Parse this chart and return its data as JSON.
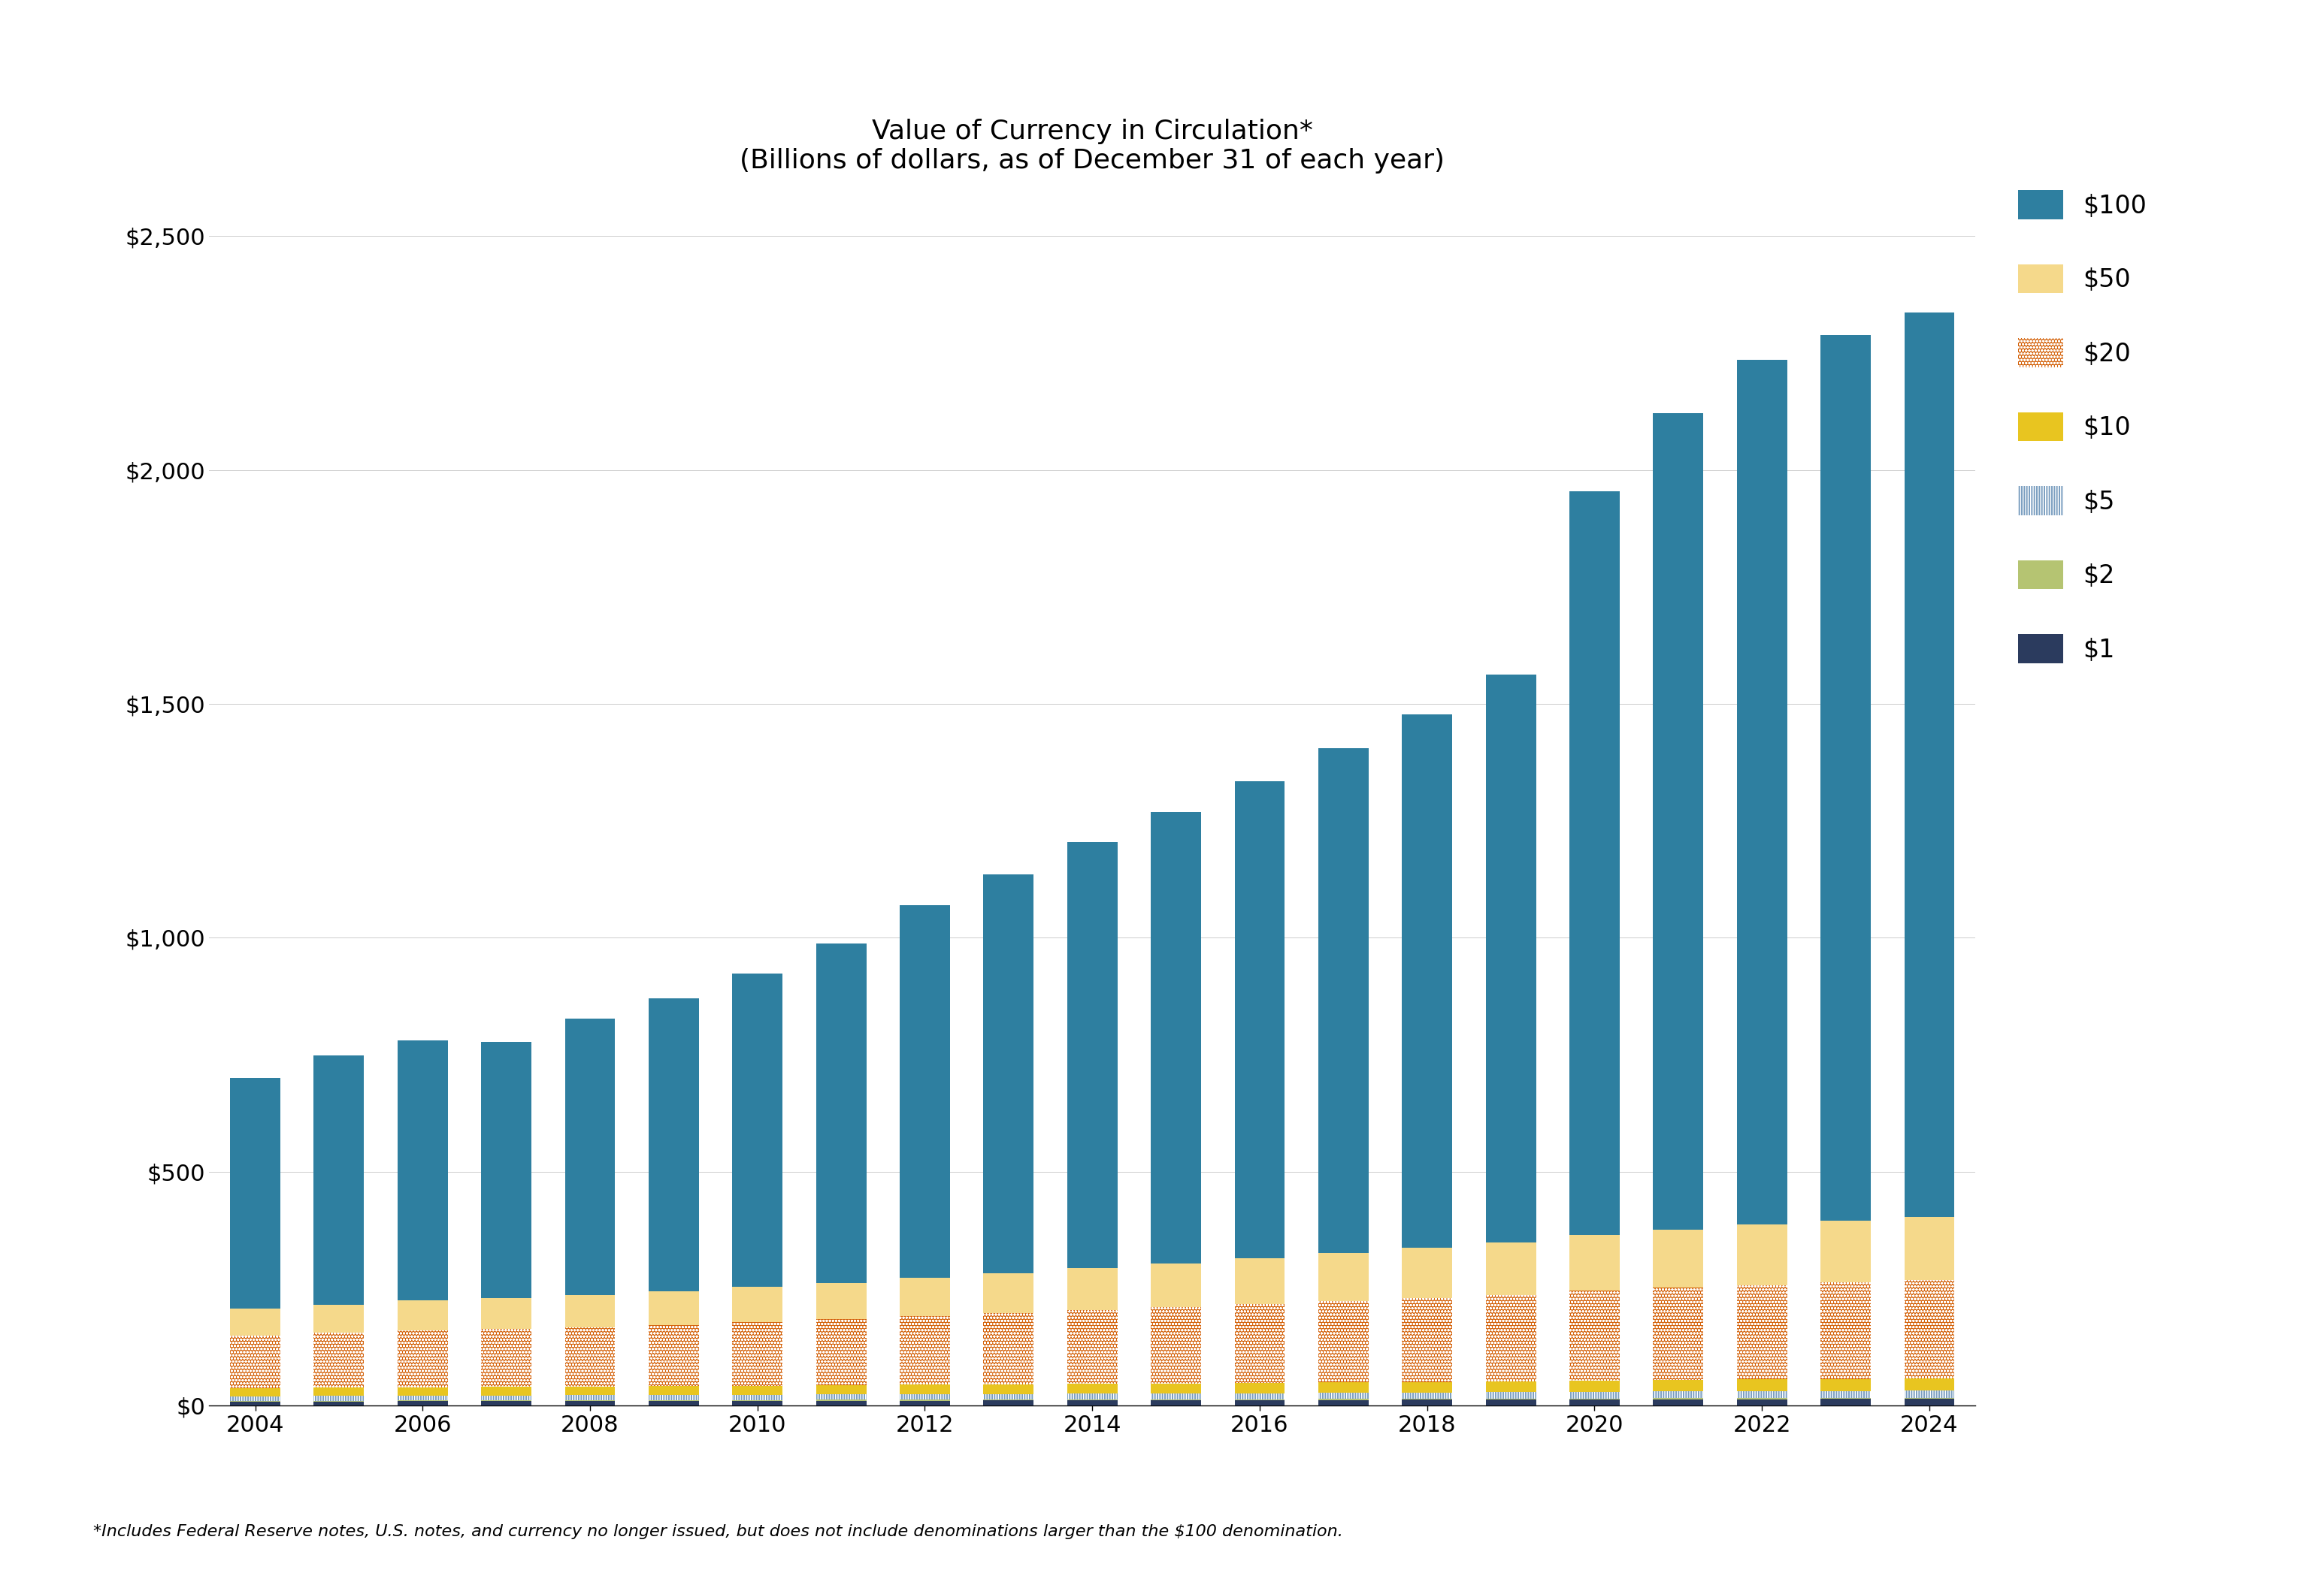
{
  "years": [
    2004,
    2005,
    2006,
    2007,
    2008,
    2009,
    2010,
    2011,
    2012,
    2013,
    2014,
    2015,
    2016,
    2017,
    2018,
    2019,
    2020,
    2021,
    2022,
    2023,
    2024
  ],
  "d1": [
    8.1,
    8.4,
    8.7,
    8.9,
    9.1,
    9.3,
    9.5,
    9.8,
    10.0,
    10.2,
    10.5,
    10.8,
    11.1,
    11.4,
    11.8,
    12.1,
    12.5,
    12.9,
    13.2,
    13.5,
    13.7
  ],
  "d2": [
    1.5,
    1.6,
    1.6,
    1.7,
    1.7,
    1.8,
    1.8,
    1.9,
    1.9,
    2.0,
    2.0,
    2.1,
    2.1,
    2.2,
    2.2,
    2.3,
    2.4,
    2.4,
    2.5,
    2.5,
    2.6
  ],
  "d5": [
    9.6,
    9.9,
    10.2,
    10.4,
    10.6,
    10.8,
    11.1,
    11.3,
    11.6,
    11.8,
    12.1,
    12.4,
    12.7,
    13.0,
    13.2,
    13.5,
    13.9,
    14.2,
    14.5,
    14.8,
    15.0
  ],
  "d10": [
    17.3,
    17.8,
    18.3,
    18.6,
    19.0,
    19.3,
    19.7,
    20.1,
    20.5,
    20.9,
    21.3,
    21.7,
    22.1,
    22.6,
    23.0,
    23.5,
    24.2,
    24.7,
    25.1,
    25.5,
    25.9
  ],
  "d20": [
    112,
    117,
    121,
    124,
    127,
    131,
    136,
    141,
    147,
    152,
    158,
    163,
    168,
    173,
    179,
    184,
    192,
    197,
    202,
    206,
    210
  ],
  "d50": [
    58,
    61,
    64,
    66,
    69,
    72,
    75,
    78,
    82,
    86,
    90,
    94,
    98,
    103,
    108,
    113,
    120,
    125,
    129,
    132,
    135
  ],
  "d100": [
    493,
    532,
    556,
    548,
    590,
    626,
    670,
    726,
    796,
    853,
    910,
    965,
    1020,
    1080,
    1140,
    1215,
    1590,
    1745,
    1850,
    1895,
    1935
  ],
  "title_line1": "Value of Currency in Circulation*",
  "title_line2": "(Billions of dollars, as of December 31 of each year)",
  "footnote": "*Includes Federal Reserve notes, U.S. notes, and currency no longer issued, but does not include denominations larger than the $100 denomination.",
  "color_100": "#2e7fa0",
  "color_50": "#f5d98b",
  "color_20": "#d4620a",
  "color_10": "#e8c520",
  "color_5": "#7a9ec0",
  "color_2": "#b5c472",
  "color_1": "#2b3b5e",
  "ylim": [
    0,
    2600
  ],
  "yticks": [
    0,
    500,
    1000,
    1500,
    2000,
    2500
  ],
  "yticklabels": [
    "$0",
    "$500",
    "$1,000",
    "$1,500",
    "$2,000",
    "$2,500"
  ],
  "xtick_years": [
    2004,
    2006,
    2008,
    2010,
    2012,
    2014,
    2016,
    2018,
    2020,
    2022,
    2024
  ]
}
